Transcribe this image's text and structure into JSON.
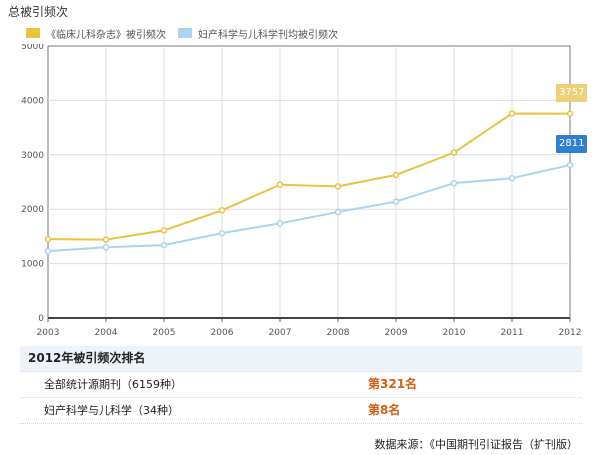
{
  "page": {
    "title": "总被引频次"
  },
  "chart_data": {
    "type": "line",
    "x": [
      "2003",
      "2004",
      "2005",
      "2006",
      "2007",
      "2008",
      "2009",
      "2010",
      "2011",
      "2012"
    ],
    "series": [
      {
        "name": "《临床儿科杂志》被引频次",
        "color": "#e8c340",
        "values": [
          1450,
          1440,
          1610,
          1980,
          2450,
          2420,
          2630,
          3040,
          3760,
          3757
        ]
      },
      {
        "name": "妇产科学与儿科学刊均被引频次",
        "color": "#a9d4ef",
        "values": [
          1230,
          1300,
          1340,
          1560,
          1740,
          1950,
          2140,
          2480,
          2570,
          2811
        ]
      }
    ],
    "end_labels": [
      {
        "text": "3757",
        "color": "#ecd077"
      },
      {
        "text": "2811",
        "color": "#2f7fd2"
      }
    ],
    "ylim": [
      0,
      5000
    ],
    "yticks": [
      "0",
      "1000",
      "2000",
      "3000",
      "4000",
      "5000"
    ],
    "xlabel": "",
    "ylabel": "",
    "grid": true,
    "legend": "top-left"
  },
  "ranking": {
    "title": "2012年被引频次排名",
    "rows": [
      {
        "label": "全部统计源期刊（6159种）",
        "rank": "第321名"
      },
      {
        "label": "妇产科学与儿科学（34种）",
        "rank": "第8名"
      }
    ]
  },
  "source": "数据来源：《中国期刊引证报告（扩刊版）"
}
